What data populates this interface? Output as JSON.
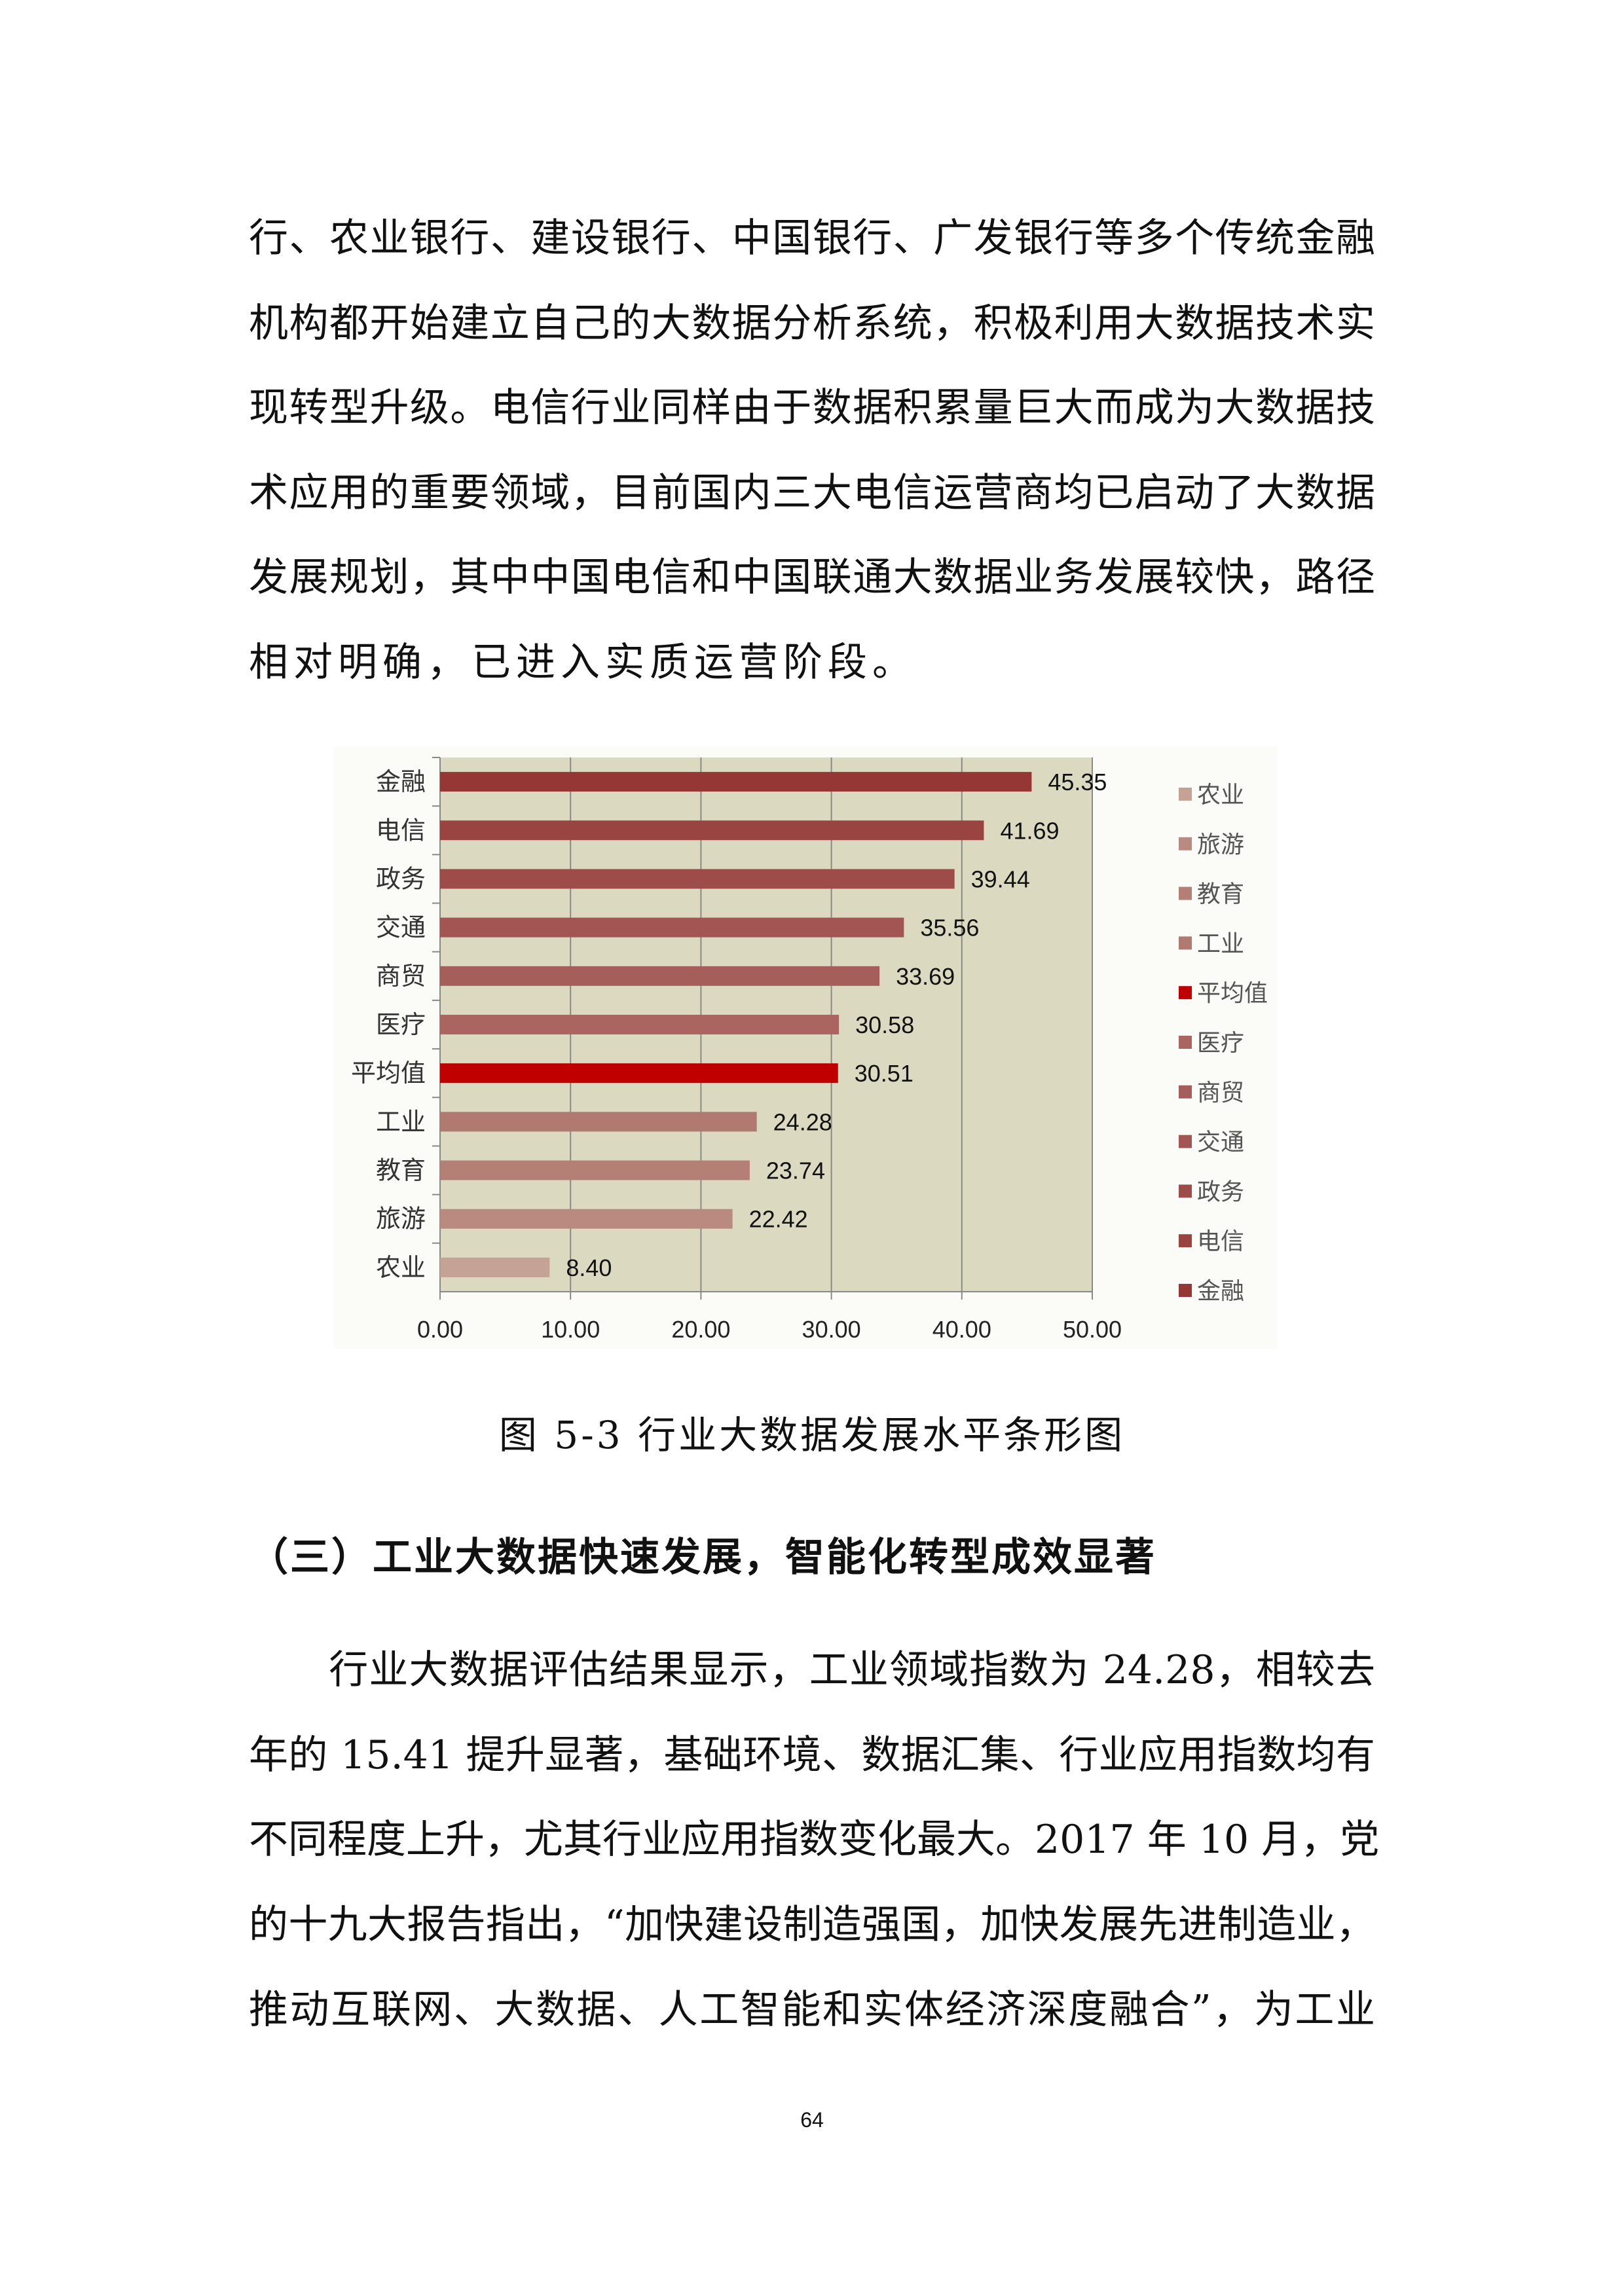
{
  "paragraph1": [
    "行、农业银行、建设银行、中国银行、广发银行等多个传统金融",
    "机构都开始建立自己的大数据分析系统，积极利用大数据技术实",
    "现转型升级。电信行业同样由于数据积累量巨大而成为大数据技",
    "术应用的重要领域，目前国内三大电信运营商均已启动了大数据",
    "发展规划，其中中国电信和中国联通大数据业务发展较快，路径",
    "相对明确，已进入实质运营阶段。"
  ],
  "chart_data": {
    "type": "bar",
    "orientation": "horizontal",
    "categories": [
      "金融",
      "电信",
      "政务",
      "交通",
      "商贸",
      "医疗",
      "平均值",
      "工业",
      "教育",
      "旅游",
      "农业"
    ],
    "values": [
      45.35,
      41.69,
      39.44,
      35.56,
      33.69,
      30.58,
      30.51,
      24.28,
      23.74,
      22.42,
      8.4
    ],
    "value_labels": [
      "45.35",
      "41.69",
      "39.44",
      "35.56",
      "33.69",
      "30.58",
      "30.51",
      "24.28",
      "23.74",
      "22.42",
      "8.40"
    ],
    "colors": [
      "#953735",
      "#9a4442",
      "#9e4c4a",
      "#a25553",
      "#a65e5b",
      "#aa6560",
      "#c00000",
      "#b07a70",
      "#b47f75",
      "#b98a80",
      "#c4a396"
    ],
    "xlim": [
      0,
      50
    ],
    "xticks": [
      "0.00",
      "10.00",
      "20.00",
      "30.00",
      "40.00",
      "50.00"
    ],
    "grid": true,
    "plot_background": "#dcd9c1",
    "legend": {
      "position": "right",
      "order": [
        "农业",
        "旅游",
        "教育",
        "工业",
        "平均值",
        "医疗",
        "商贸",
        "交通",
        "政务",
        "电信",
        "金融"
      ]
    }
  },
  "caption": "图 5-3  行业大数据发展水平条形图",
  "heading": "（三）工业大数据快速发展，智能化转型成效显著",
  "paragraph2": [
    "　　行业大数据评估结果显示，工业领域指数为 24.28，相较去",
    "年的 15.41 提升显著，基础环境、数据汇集、行业应用指数均有",
    "不同程度上升，尤其行业应用指数变化最大。2017 年 10 月，党",
    "的十九大报告指出，“加快建设制造强国，加快发展先进制造业，",
    "推动互联网、大数据、人工智能和实体经济深度融合”，为工业"
  ],
  "page_number": "64"
}
